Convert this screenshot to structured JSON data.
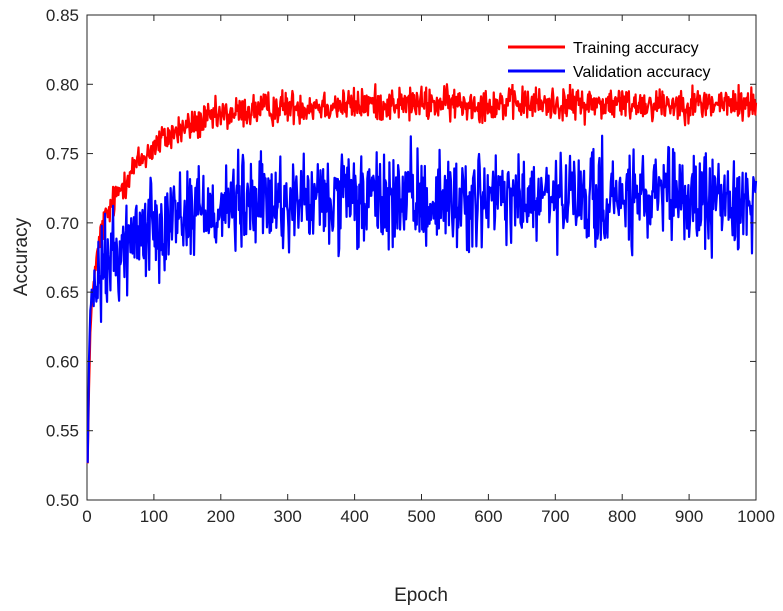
{
  "chart_data": {
    "type": "line",
    "xlabel": "Epoch",
    "ylabel": "Accuracy",
    "xlim": [
      0,
      1000
    ],
    "ylim": [
      0.5,
      0.85
    ],
    "xticks": [
      0,
      100,
      200,
      300,
      400,
      500,
      600,
      700,
      800,
      900,
      1000
    ],
    "xtick_labels": [
      "0",
      "100",
      "200",
      "300",
      "400",
      "500",
      "600",
      "700",
      "800",
      "900",
      "1000"
    ],
    "yticks": [
      0.5,
      0.55,
      0.6,
      0.65,
      0.7,
      0.75,
      0.8,
      0.85
    ],
    "ytick_labels": [
      "0.50",
      "0.55",
      "0.60",
      "0.65",
      "0.70",
      "0.75",
      "0.80",
      "0.85"
    ],
    "grid": false,
    "legend_position": "top-right",
    "series": [
      {
        "name": "Training accuracy",
        "color": "#ff0000",
        "x": [
          1,
          3,
          5,
          8,
          10,
          15,
          20,
          25,
          30,
          35,
          40,
          50,
          60,
          70,
          80,
          90,
          100,
          110,
          120,
          130,
          140,
          150,
          160,
          170,
          180,
          190,
          200,
          220,
          240,
          260,
          280,
          300,
          320,
          340,
          360,
          380,
          400,
          420,
          440,
          460,
          480,
          500,
          520,
          540,
          560,
          580,
          600,
          620,
          640,
          660,
          680,
          700,
          720,
          740,
          760,
          780,
          800,
          820,
          840,
          860,
          880,
          900,
          920,
          940,
          960,
          980,
          1000
        ],
        "y": [
          0.527,
          0.58,
          0.62,
          0.645,
          0.66,
          0.675,
          0.69,
          0.7,
          0.705,
          0.71,
          0.715,
          0.725,
          0.733,
          0.74,
          0.745,
          0.75,
          0.755,
          0.759,
          0.762,
          0.765,
          0.767,
          0.769,
          0.771,
          0.773,
          0.774,
          0.776,
          0.777,
          0.779,
          0.781,
          0.782,
          0.783,
          0.784,
          0.784,
          0.785,
          0.785,
          0.785,
          0.785,
          0.786,
          0.786,
          0.786,
          0.786,
          0.786,
          0.786,
          0.786,
          0.786,
          0.786,
          0.786,
          0.786,
          0.786,
          0.786,
          0.786,
          0.786,
          0.786,
          0.786,
          0.786,
          0.786,
          0.786,
          0.786,
          0.786,
          0.786,
          0.786,
          0.786,
          0.786,
          0.786,
          0.786,
          0.786,
          0.786
        ],
        "noise": 0.006
      },
      {
        "name": "Validation accuracy",
        "color": "#0000ff",
        "x": [
          1,
          3,
          5,
          8,
          10,
          15,
          20,
          25,
          30,
          35,
          40,
          50,
          60,
          70,
          80,
          90,
          100,
          110,
          120,
          130,
          140,
          150,
          160,
          170,
          180,
          190,
          200,
          220,
          240,
          260,
          280,
          300,
          320,
          340,
          360,
          380,
          400,
          420,
          440,
          460,
          480,
          500,
          520,
          540,
          560,
          580,
          600,
          620,
          640,
          660,
          680,
          700,
          720,
          740,
          760,
          780,
          800,
          820,
          840,
          860,
          880,
          900,
          920,
          940,
          960,
          980,
          1000
        ],
        "y": [
          0.527,
          0.6,
          0.635,
          0.645,
          0.648,
          0.655,
          0.66,
          0.665,
          0.67,
          0.673,
          0.676,
          0.68,
          0.685,
          0.69,
          0.694,
          0.697,
          0.7,
          0.702,
          0.704,
          0.706,
          0.707,
          0.708,
          0.709,
          0.71,
          0.711,
          0.711,
          0.712,
          0.713,
          0.713,
          0.714,
          0.714,
          0.715,
          0.715,
          0.715,
          0.715,
          0.715,
          0.715,
          0.716,
          0.716,
          0.716,
          0.716,
          0.716,
          0.716,
          0.716,
          0.716,
          0.716,
          0.716,
          0.716,
          0.716,
          0.716,
          0.716,
          0.716,
          0.716,
          0.716,
          0.716,
          0.716,
          0.716,
          0.716,
          0.716,
          0.716,
          0.716,
          0.716,
          0.716,
          0.716,
          0.716,
          0.716,
          0.716
        ],
        "noise": 0.017
      }
    ]
  }
}
